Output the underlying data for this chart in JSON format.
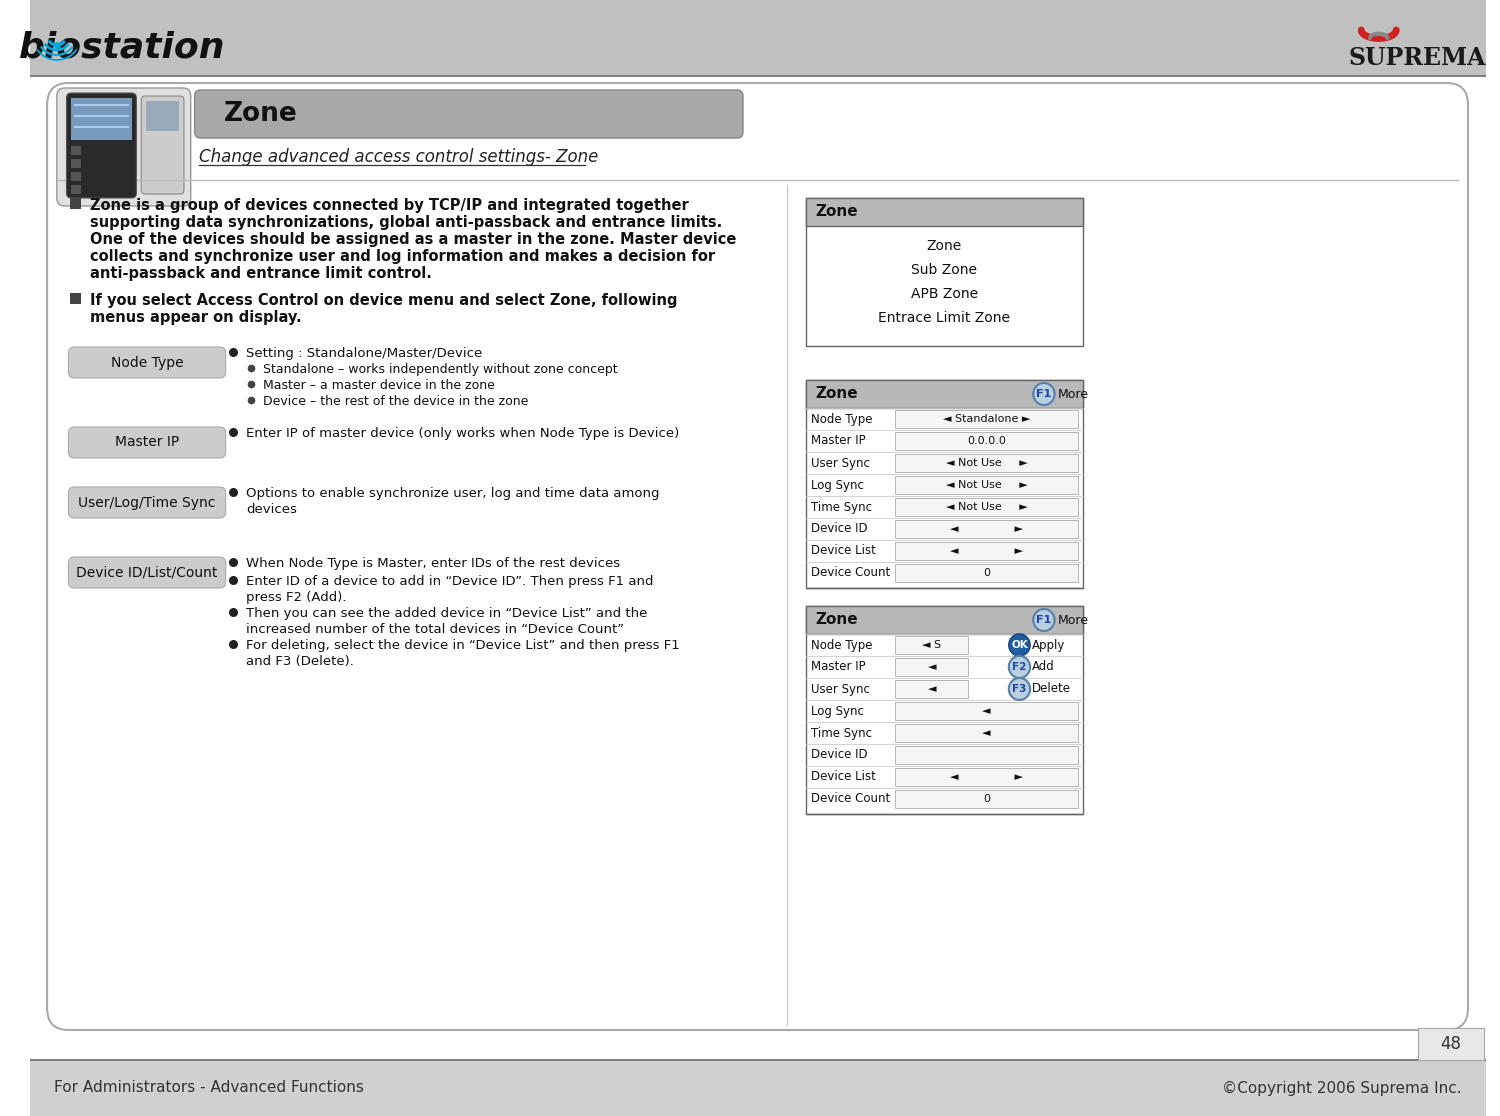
{
  "bg_color": "#ffffff",
  "header_bg": "#c0c0c0",
  "footer_bg": "#d0d0d0",
  "header_line_color": "#808080",
  "title": "Zone",
  "title_italic": "Change advanced access control settings- Zone",
  "footer_left": "For Administrators - Advanced Functions",
  "footer_right": "©Copyright 2006 Suprema Inc.",
  "page_number": "48",
  "node_type_label": "Node Type",
  "master_ip_label": "Master IP",
  "user_log_time_label": "User/Log/Time Sync",
  "device_id_label": "Device ID/List/Count",
  "bullet_node_setting": "Setting : Standalone/Master/Device",
  "bullet_node_standalone": "Standalone – works independently without zone concept",
  "bullet_node_master": "Master – a master device in the zone",
  "bullet_node_device": "Device – the rest of the device in the zone",
  "bullet_master_ip": "Enter IP of master device (only works when Node Type is Device)",
  "bullet_user_log_line1": "Options to enable synchronize user, log and time data among",
  "bullet_user_log_line2": "devices",
  "bullet_device1": "When Node Type is Master, enter IDs of the rest devices",
  "bullet_device2_line1": "Enter ID of a device to add in “Device ID”. Then press F1 and",
  "bullet_device2_line2": "press F2 (Add).",
  "bullet_device3_line1": "Then you can see the added device in “Device List” and the",
  "bullet_device3_line2": "increased number of the total devices in “Device Count”",
  "bullet_device4_line1": "For deleting, select the device in “Device List” and then press F1",
  "bullet_device4_line2": "and F3 (Delete).",
  "zone_menu_title": "Zone",
  "zone_menu_items": [
    "Zone",
    "Sub Zone",
    "APB Zone",
    "Entrace Limit Zone"
  ],
  "zone_panel_title": "Zone",
  "zone_panel1_rows": [
    [
      "Node Type",
      "◄ Standalone ►"
    ],
    [
      "Master IP",
      "0.0.0.0"
    ],
    [
      "User Sync",
      "◄ Not Use     ►"
    ],
    [
      "Log Sync",
      "◄ Not Use     ►"
    ],
    [
      "Time Sync",
      "◄ Not Use     ►"
    ],
    [
      "Device ID",
      "◄                ►"
    ],
    [
      "Device List",
      "◄                ►"
    ],
    [
      "Device Count",
      "0"
    ]
  ],
  "zone_panel2_rows": [
    [
      "Node Type",
      "◄ S"
    ],
    [
      "Master IP",
      ""
    ],
    [
      "User Sync",
      "◄"
    ],
    [
      "Log Sync",
      "◄"
    ],
    [
      "Time Sync",
      "◄"
    ],
    [
      "Device ID",
      ""
    ],
    [
      "Device List",
      "◄                ►"
    ],
    [
      "Device Count",
      "0"
    ]
  ],
  "lines_bullet1": [
    "Zone is a group of devices connected by TCP/IP and integrated together",
    "supporting data synchronizations, global anti-passback and entrance limits.",
    "One of the devices should be assigned as a master in the zone. Master device",
    "collects and synchronize user and log information and makes a decision for",
    "anti-passback and entrance limit control."
  ],
  "lines_bullet2": [
    "If you select Access Control on device menu and select Zone, following",
    "menus appear on display."
  ]
}
